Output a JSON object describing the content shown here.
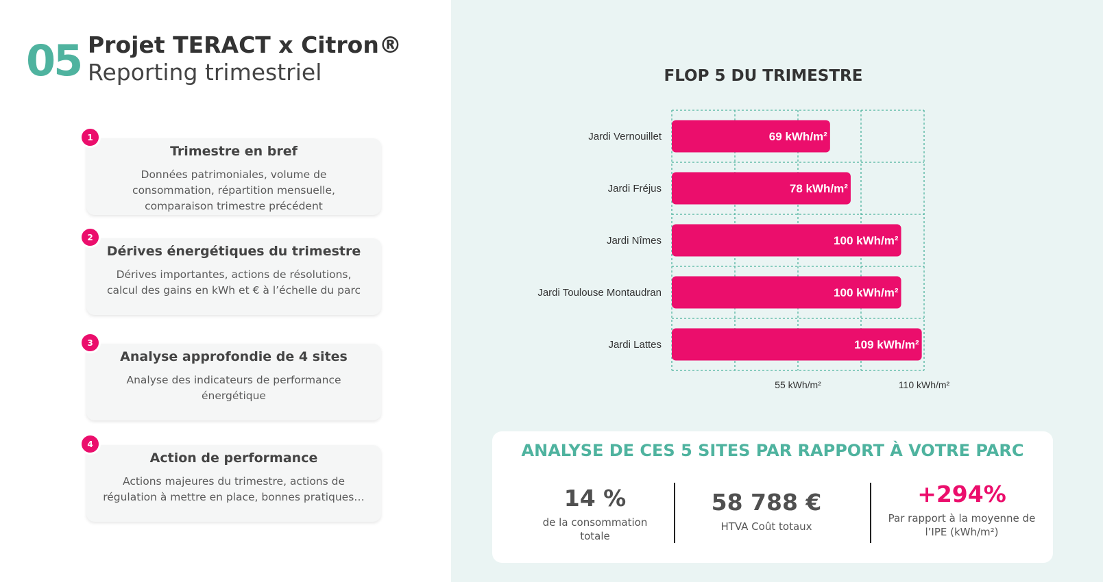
{
  "header": {
    "number": "05",
    "title": "Projet TERACT x Citron®",
    "subtitle": "Reporting trimestriel"
  },
  "cards": [
    {
      "badge": "1",
      "title": "Trimestre en bref",
      "desc": "Données patrimoniales, volume de consommation, répartition mensuelle, comparaison trimestre précédent"
    },
    {
      "badge": "2",
      "title": "Dérives énergétiques du trimestre",
      "desc": "Dérives importantes, actions de résolutions, calcul des gains en kWh et € à l’échelle du parc"
    },
    {
      "badge": "3",
      "title": "Analyse approfondie de 4 sites",
      "desc": "Analyse des indicateurs de performance énergétique"
    },
    {
      "badge": "4",
      "title": "Action de performance",
      "desc": "Actions majeures du trimestre, actions de régulation à mettre en place, bonnes pratiques…"
    }
  ],
  "chart_data": {
    "type": "bar",
    "orientation": "horizontal",
    "title": "FLOP 5 DU TRIMESTRE",
    "categories": [
      "Jardi Vernouillet",
      "Jardi Fréjus",
      "Jardi Nîmes",
      "Jardi Toulouse Montaudran",
      "Jardi Lattes"
    ],
    "values": [
      69,
      78,
      100,
      100,
      109
    ],
    "data_labels": [
      "69 kWh/m²",
      "78 kWh/m²",
      "100 kWh/m²",
      "100 kWh/m²",
      "109 kWh/m²"
    ],
    "xlim": [
      0,
      110
    ],
    "xticks": [
      55,
      110
    ],
    "xtick_labels": [
      "55 kWh/m²",
      "110 kWh/m²"
    ],
    "unit": "kWh/m²",
    "grid": true,
    "bar_color": "#eb0e6c",
    "grid_color": "#4fb39f"
  },
  "analysis": {
    "title": "ANALYSE DE CES 5 SITES PAR RAPPORT À VOTRE PARC",
    "stats": [
      {
        "value": "14 %",
        "label": "de la consommation totale"
      },
      {
        "value": "58 788 €",
        "label": "HTVA Coût totaux"
      },
      {
        "value": "+294%",
        "label": "Par rapport à la moyenne de l’IPE (kWh/m²)"
      }
    ]
  },
  "colors": {
    "accent_green": "#4fb39f",
    "accent_pink": "#eb0e6c",
    "right_background": "#eaf4f3"
  }
}
